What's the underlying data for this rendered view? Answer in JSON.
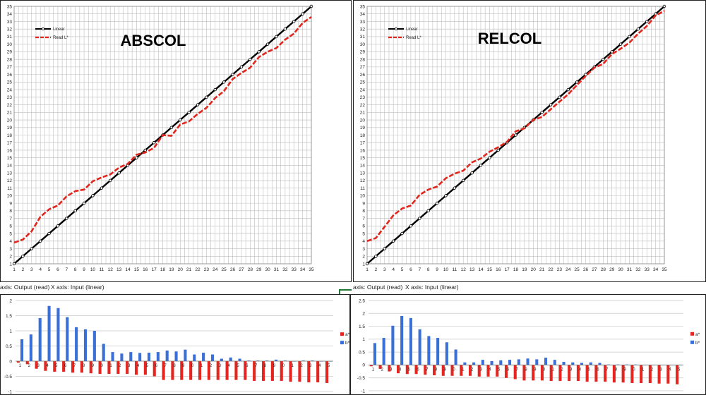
{
  "colors": {
    "linear": "#000000",
    "read": "#e0261d",
    "astar": "#e5251f",
    "bstar": "#3a6fd8",
    "grid": "#bdbdbd"
  },
  "captions": {
    "y_axis_text": "axis: Output (read)",
    "x_axis_text": "X axis: Input (linear)"
  },
  "chart_data": [
    {
      "type": "line",
      "title": "ABSCOL",
      "x": [
        1,
        2,
        3,
        4,
        5,
        6,
        7,
        8,
        9,
        10,
        11,
        12,
        13,
        14,
        15,
        16,
        17,
        18,
        19,
        20,
        21,
        22,
        23,
        24,
        25,
        26,
        27,
        28,
        29,
        30,
        31,
        32,
        33,
        34,
        35
      ],
      "ylim": [
        1,
        35
      ],
      "xlim": [
        1,
        35
      ],
      "grid": true,
      "legend_position": "top-left",
      "series": [
        {
          "name": "Linear",
          "values": [
            1,
            2,
            3,
            4,
            5,
            6,
            7,
            8,
            9,
            10,
            11,
            12,
            13,
            14,
            15,
            16,
            17,
            18,
            19,
            20,
            21,
            22,
            23,
            24,
            25,
            26,
            27,
            28,
            29,
            30,
            31,
            32,
            33,
            34,
            35
          ]
        },
        {
          "name": "Read L*",
          "values": [
            3.8,
            4.2,
            5.3,
            7.2,
            8.2,
            8.7,
            9.9,
            10.6,
            10.8,
            11.9,
            12.4,
            12.8,
            13.7,
            14.2,
            15.4,
            15.7,
            16.3,
            18.0,
            17.9,
            19.4,
            19.8,
            20.8,
            21.6,
            22.9,
            23.8,
            25.4,
            26.2,
            26.9,
            28.3,
            29.0,
            29.5,
            30.6,
            31.4,
            32.8,
            33.6
          ]
        }
      ]
    },
    {
      "type": "line",
      "title": "RELCOL",
      "x": [
        1,
        2,
        3,
        4,
        5,
        6,
        7,
        8,
        9,
        10,
        11,
        12,
        13,
        14,
        15,
        16,
        17,
        18,
        19,
        20,
        21,
        22,
        23,
        24,
        25,
        26,
        27,
        28,
        29,
        30,
        31,
        32,
        33,
        34,
        35
      ],
      "ylim": [
        1,
        35
      ],
      "xlim": [
        1,
        35
      ],
      "grid": true,
      "legend_position": "top-left",
      "series": [
        {
          "name": "Linear",
          "values": [
            1,
            2,
            3,
            4,
            5,
            6,
            7,
            8,
            9,
            10,
            11,
            12,
            13,
            14,
            15,
            16,
            17,
            18,
            19,
            20,
            21,
            22,
            23,
            24,
            25,
            26,
            27,
            28,
            29,
            30,
            31,
            32,
            33,
            34,
            35
          ]
        },
        {
          "name": "Read L*",
          "values": [
            4.0,
            4.4,
            5.9,
            7.4,
            8.3,
            8.7,
            10.1,
            10.8,
            11.2,
            12.3,
            12.9,
            13.3,
            14.4,
            14.9,
            15.8,
            16.4,
            17.1,
            18.5,
            18.9,
            20.0,
            20.4,
            21.4,
            22.4,
            23.4,
            24.6,
            25.8,
            26.9,
            27.4,
            28.7,
            29.4,
            30.2,
            31.4,
            32.4,
            33.8,
            34.4
          ]
        }
      ]
    },
    {
      "type": "bar",
      "categories": [
        "1",
        "2",
        "3",
        "4",
        "5",
        "6",
        "7",
        "8",
        "9",
        "0",
        "1",
        "2",
        "3",
        "4",
        "5",
        "6",
        "7",
        "8",
        "9",
        "0",
        "1",
        "2",
        "3",
        "4",
        "5",
        "6",
        "7",
        "8",
        "9",
        "0",
        "1",
        "2",
        "3",
        "4",
        "5"
      ],
      "ylim": [
        -1,
        2
      ],
      "yticks": [
        "2",
        "1.5",
        "1",
        "0.5",
        "0",
        "-0.5",
        "-1"
      ],
      "grid": true,
      "legend_position": "right",
      "series": [
        {
          "name": "a*",
          "values": [
            -0.05,
            -0.1,
            -0.25,
            -0.32,
            -0.35,
            -0.35,
            -0.38,
            -0.38,
            -0.4,
            -0.42,
            -0.42,
            -0.42,
            -0.42,
            -0.45,
            -0.45,
            -0.5,
            -0.62,
            -0.62,
            -0.62,
            -0.62,
            -0.62,
            -0.62,
            -0.62,
            -0.62,
            -0.62,
            -0.62,
            -0.65,
            -0.65,
            -0.65,
            -0.65,
            -0.68,
            -0.68,
            -0.7,
            -0.7,
            -0.72
          ]
        },
        {
          "name": "b*",
          "values": [
            0.72,
            0.88,
            1.42,
            1.82,
            1.75,
            1.45,
            1.12,
            1.05,
            1.0,
            0.57,
            0.3,
            0.25,
            0.3,
            0.27,
            0.28,
            0.3,
            0.35,
            0.32,
            0.38,
            0.22,
            0.28,
            0.22,
            0.08,
            0.12,
            0.08,
            0.02,
            0.02,
            0.02,
            0.05,
            0.02,
            0.0,
            0.02,
            0.02,
            0.0,
            0.0
          ]
        }
      ]
    },
    {
      "type": "bar",
      "categories": [
        "1",
        "2",
        "3",
        "4",
        "5",
        "6",
        "7",
        "8",
        "9",
        "0",
        "1",
        "2",
        "3",
        "4",
        "5",
        "6",
        "7",
        "8",
        "9",
        "0",
        "1",
        "2",
        "3",
        "4",
        "5",
        "6",
        "7",
        "8",
        "9",
        "0",
        "1",
        "2",
        "3",
        "4",
        "5"
      ],
      "ylim": [
        -1,
        2.5
      ],
      "yticks": [
        "2.5",
        "2",
        "1.5",
        "1",
        "0.5",
        "0",
        "-0.5",
        "-1"
      ],
      "grid": true,
      "legend_position": "right",
      "series": [
        {
          "name": "a*",
          "values": [
            -0.05,
            -0.15,
            -0.25,
            -0.32,
            -0.35,
            -0.35,
            -0.38,
            -0.4,
            -0.42,
            -0.42,
            -0.42,
            -0.42,
            -0.45,
            -0.45,
            -0.45,
            -0.5,
            -0.55,
            -0.6,
            -0.6,
            -0.6,
            -0.62,
            -0.62,
            -0.62,
            -0.62,
            -0.65,
            -0.65,
            -0.65,
            -0.68,
            -0.68,
            -0.7,
            -0.7,
            -0.7,
            -0.72,
            -0.72,
            -0.75
          ]
        },
        {
          "name": "b*",
          "values": [
            0.85,
            1.05,
            1.52,
            1.9,
            1.82,
            1.38,
            1.12,
            1.05,
            0.88,
            0.6,
            0.1,
            0.1,
            0.2,
            0.15,
            0.18,
            0.2,
            0.22,
            0.25,
            0.22,
            0.28,
            0.2,
            0.12,
            0.1,
            0.08,
            0.1,
            0.08,
            0.02,
            0.02,
            0.02,
            0.02,
            0.0,
            0.0,
            0.0,
            0.0,
            0.0
          ]
        }
      ]
    }
  ]
}
